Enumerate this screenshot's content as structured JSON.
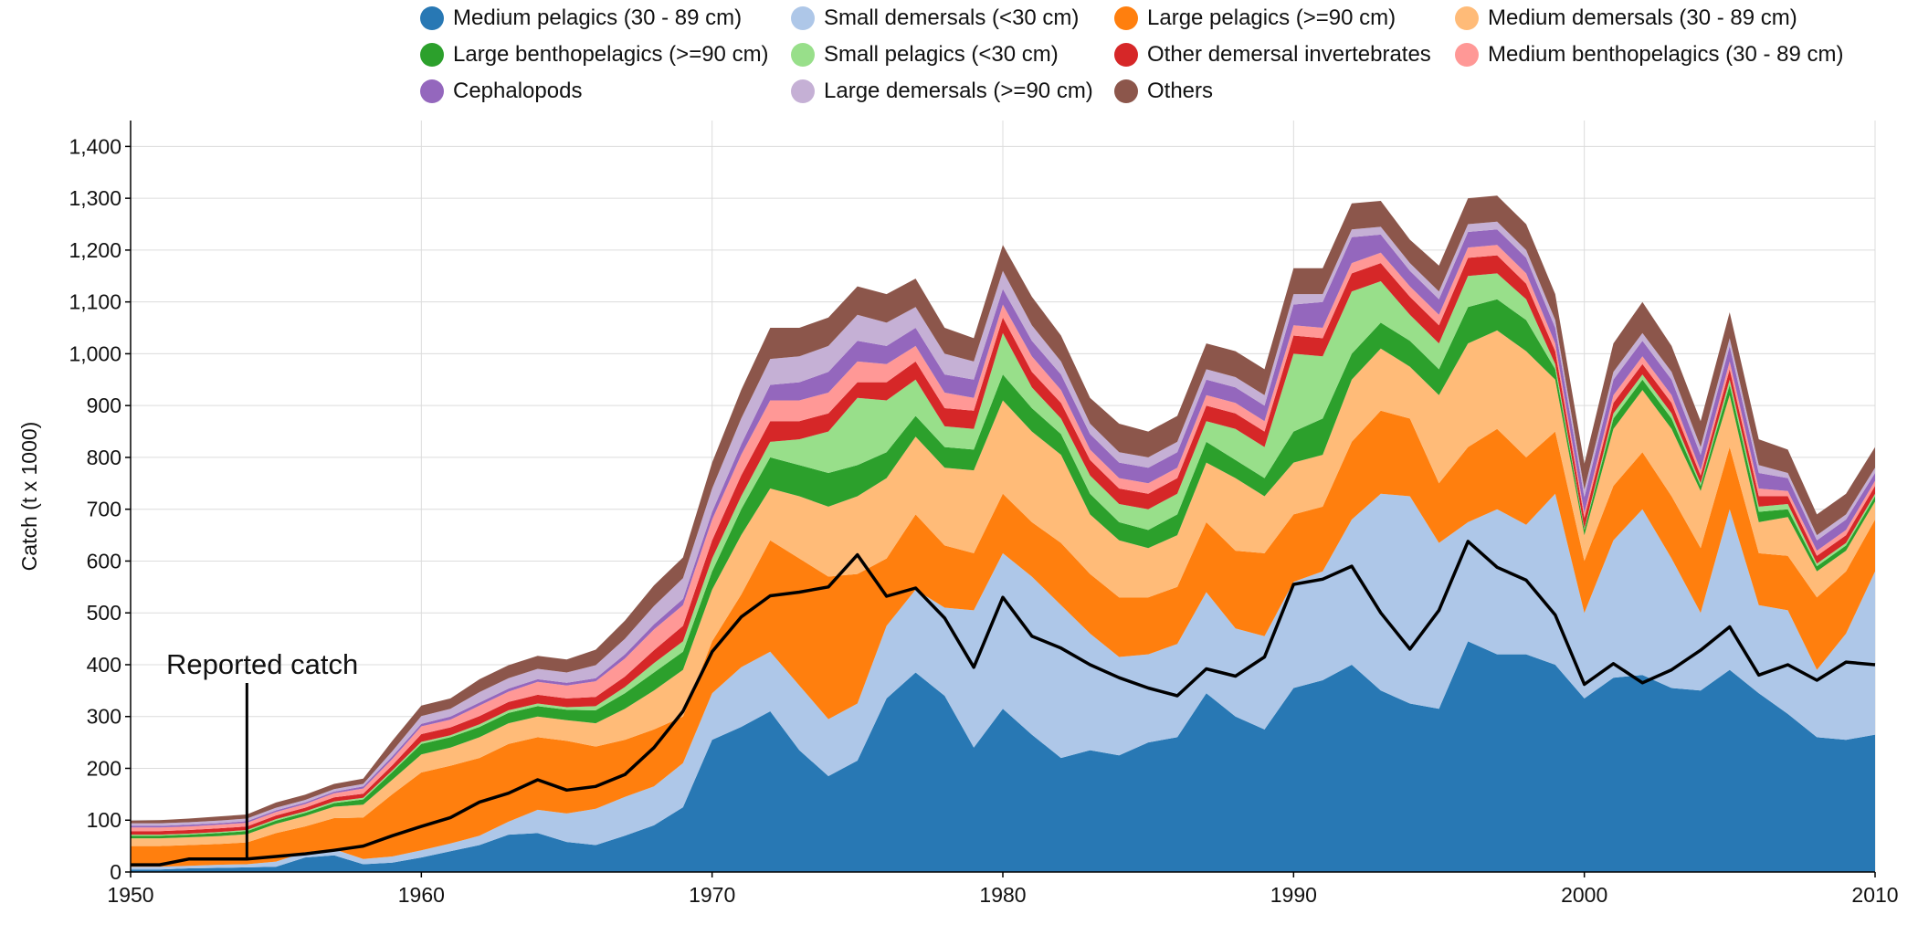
{
  "chart_data": {
    "type": "area",
    "stacked": true,
    "ylabel": "Catch (t x 1000)",
    "xlabel": "",
    "xlim": [
      1950,
      2010
    ],
    "ylim": [
      0,
      1450
    ],
    "x_ticks": [
      "1950",
      "1960",
      "1970",
      "1980",
      "1990",
      "2000",
      "2010"
    ],
    "y_ticks": [
      "0",
      "100",
      "200",
      "300",
      "400",
      "500",
      "600",
      "700",
      "800",
      "900",
      "1,000",
      "1,100",
      "1,200",
      "1,300",
      "1,400"
    ],
    "grid": true,
    "legend_position": "top",
    "annotation": {
      "text": "Reported catch",
      "x": 1954
    },
    "x": [
      1950,
      1951,
      1952,
      1953,
      1954,
      1955,
      1956,
      1957,
      1958,
      1959,
      1960,
      1961,
      1962,
      1963,
      1964,
      1965,
      1966,
      1967,
      1968,
      1969,
      1970,
      1971,
      1972,
      1973,
      1974,
      1975,
      1976,
      1977,
      1978,
      1979,
      1980,
      1981,
      1982,
      1983,
      1984,
      1985,
      1986,
      1987,
      1988,
      1989,
      1990,
      1991,
      1992,
      1993,
      1994,
      1995,
      1996,
      1997,
      1998,
      1999,
      2000,
      2001,
      2002,
      2003,
      2004,
      2005,
      2006,
      2007,
      2008,
      2009,
      2010
    ],
    "series": [
      {
        "name": "Medium pelagics (30 - 89 cm)",
        "color": "#2878b4",
        "values": [
          5,
          5,
          7,
          8,
          9,
          10,
          28,
          32,
          15,
          18,
          28,
          40,
          52,
          72,
          75,
          58,
          52,
          70,
          90,
          125,
          255,
          280,
          310,
          235,
          185,
          215,
          335,
          385,
          340,
          240,
          315,
          265,
          220,
          235,
          225,
          250,
          260,
          345,
          300,
          275,
          355,
          370,
          400,
          350,
          325,
          315,
          445,
          420,
          420,
          400,
          335,
          375,
          380,
          355,
          350,
          390,
          345,
          305,
          260,
          255,
          265
        ]
      },
      {
        "name": "Small demersals (<30 cm)",
        "color": "#aec7e8",
        "values": [
          5,
          5,
          5,
          6,
          6,
          10,
          10,
          12,
          10,
          12,
          14,
          15,
          18,
          25,
          45,
          55,
          70,
          75,
          75,
          85,
          90,
          115,
          115,
          125,
          110,
          110,
          140,
          160,
          170,
          265,
          300,
          305,
          295,
          225,
          190,
          170,
          180,
          195,
          170,
          180,
          205,
          210,
          280,
          380,
          400,
          320,
          230,
          280,
          250,
          330,
          165,
          265,
          320,
          250,
          150,
          310,
          170,
          200,
          130,
          205,
          315
        ]
      },
      {
        "name": "Large pelagics (>=90 cm)",
        "color": "#ff7f0e",
        "values": [
          40,
          40,
          40,
          40,
          42,
          55,
          50,
          60,
          80,
          120,
          150,
          150,
          150,
          150,
          140,
          140,
          120,
          110,
          110,
          90,
          100,
          140,
          215,
          245,
          275,
          250,
          130,
          145,
          120,
          110,
          115,
          105,
          120,
          115,
          115,
          110,
          110,
          135,
          150,
          160,
          130,
          125,
          150,
          160,
          150,
          115,
          145,
          155,
          130,
          120,
          100,
          105,
          110,
          120,
          125,
          120,
          100,
          105,
          140,
          120,
          100
        ]
      },
      {
        "name": "Medium demersals (30 - 89 cm)",
        "color": "#ffbb78",
        "values": [
          15,
          15,
          15,
          15,
          16,
          18,
          20,
          22,
          25,
          28,
          35,
          35,
          40,
          40,
          40,
          40,
          45,
          60,
          75,
          90,
          100,
          115,
          100,
          120,
          135,
          150,
          155,
          150,
          150,
          160,
          180,
          175,
          170,
          115,
          110,
          95,
          100,
          115,
          140,
          110,
          100,
          100,
          120,
          120,
          100,
          170,
          200,
          190,
          205,
          100,
          50,
          110,
          120,
          130,
          110,
          100,
          60,
          75,
          50,
          40,
          35
        ]
      },
      {
        "name": "Large benthopelagics (>=90 cm)",
        "color": "#2ca02c",
        "values": [
          5,
          5,
          5,
          6,
          6,
          6,
          6,
          7,
          10,
          15,
          20,
          20,
          20,
          20,
          20,
          20,
          25,
          30,
          35,
          35,
          35,
          50,
          60,
          60,
          65,
          60,
          50,
          40,
          40,
          40,
          50,
          45,
          40,
          40,
          35,
          35,
          40,
          40,
          35,
          35,
          60,
          70,
          50,
          50,
          50,
          50,
          70,
          60,
          60,
          20,
          10,
          20,
          20,
          20,
          10,
          20,
          20,
          15,
          10,
          10,
          10
        ]
      },
      {
        "name": "Small pelagics (<30 cm)",
        "color": "#98df8a",
        "values": [
          2,
          2,
          2,
          2,
          2,
          3,
          3,
          3,
          3,
          3,
          4,
          4,
          5,
          5,
          5,
          5,
          8,
          12,
          18,
          20,
          25,
          25,
          30,
          50,
          80,
          130,
          100,
          70,
          40,
          40,
          80,
          40,
          30,
          35,
          35,
          40,
          40,
          40,
          60,
          60,
          150,
          120,
          120,
          80,
          50,
          50,
          60,
          50,
          40,
          10,
          3,
          10,
          10,
          10,
          5,
          10,
          10,
          10,
          5,
          5,
          5
        ]
      },
      {
        "name": "Other demersal invertebrates",
        "color": "#d62728",
        "values": [
          7,
          7,
          7,
          7,
          7,
          7,
          7,
          8,
          8,
          10,
          15,
          15,
          16,
          16,
          17,
          17,
          18,
          20,
          25,
          30,
          35,
          40,
          40,
          35,
          35,
          30,
          35,
          35,
          35,
          35,
          30,
          30,
          30,
          30,
          30,
          30,
          30,
          30,
          30,
          30,
          35,
          35,
          35,
          35,
          35,
          35,
          35,
          35,
          30,
          25,
          20,
          20,
          20,
          20,
          15,
          20,
          20,
          15,
          15,
          15,
          15
        ]
      },
      {
        "name": "Medium benthopelagics (30 - 89 cm)",
        "color": "#ff9896",
        "values": [
          7,
          7,
          7,
          7,
          7,
          7,
          7,
          8,
          10,
          12,
          15,
          15,
          20,
          20,
          25,
          25,
          30,
          35,
          40,
          40,
          40,
          40,
          40,
          40,
          40,
          40,
          35,
          30,
          30,
          25,
          25,
          30,
          25,
          20,
          20,
          20,
          20,
          20,
          20,
          20,
          20,
          20,
          20,
          20,
          20,
          20,
          20,
          20,
          20,
          15,
          10,
          15,
          15,
          15,
          10,
          15,
          15,
          10,
          10,
          10,
          10
        ]
      },
      {
        "name": "Cephalopods",
        "color": "#9467bd",
        "values": [
          3,
          3,
          3,
          3,
          3,
          3,
          3,
          3,
          4,
          5,
          5,
          6,
          6,
          6,
          5,
          5,
          6,
          8,
          10,
          12,
          15,
          20,
          30,
          35,
          40,
          40,
          35,
          35,
          35,
          35,
          30,
          30,
          30,
          30,
          30,
          30,
          30,
          30,
          30,
          30,
          40,
          50,
          50,
          35,
          30,
          30,
          30,
          30,
          30,
          30,
          30,
          30,
          30,
          30,
          30,
          30,
          30,
          25,
          20,
          20,
          15
        ]
      },
      {
        "name": "Large demersals (>=90 cm)",
        "color": "#c5b0d5",
        "values": [
          5,
          5,
          5,
          5,
          5,
          5,
          5,
          5,
          5,
          10,
          15,
          15,
          20,
          20,
          20,
          20,
          25,
          30,
          35,
          40,
          45,
          50,
          50,
          50,
          50,
          50,
          45,
          40,
          40,
          35,
          35,
          30,
          25,
          20,
          20,
          20,
          20,
          20,
          20,
          20,
          20,
          15,
          15,
          15,
          15,
          15,
          15,
          15,
          15,
          15,
          15,
          15,
          15,
          15,
          15,
          15,
          15,
          10,
          10,
          10,
          10
        ]
      },
      {
        "name": "Others",
        "color": "#8c564b",
        "values": [
          5,
          6,
          7,
          8,
          8,
          10,
          10,
          10,
          10,
          20,
          20,
          20,
          25,
          25,
          25,
          25,
          30,
          35,
          40,
          40,
          50,
          55,
          60,
          55,
          55,
          55,
          55,
          55,
          50,
          45,
          50,
          55,
          50,
          50,
          55,
          50,
          50,
          50,
          50,
          50,
          50,
          50,
          50,
          50,
          45,
          50,
          50,
          50,
          50,
          50,
          50,
          55,
          60,
          50,
          50,
          50,
          50,
          45,
          40,
          40,
          40
        ]
      }
    ],
    "reported_catch": {
      "name": "Reported catch",
      "color": "#000000",
      "values": [
        14,
        14,
        25,
        25,
        25,
        30,
        35,
        42,
        50,
        70,
        88,
        105,
        135,
        152,
        178,
        158,
        165,
        188,
        240,
        310,
        425,
        492,
        533,
        540,
        550,
        612,
        532,
        548,
        490,
        395,
        530,
        455,
        432,
        400,
        375,
        355,
        340,
        392,
        378,
        415,
        555,
        565,
        590,
        500,
        430,
        505,
        638,
        588,
        563,
        496,
        362,
        402,
        365,
        390,
        428,
        473,
        380,
        400,
        370,
        405,
        400
      ]
    }
  }
}
